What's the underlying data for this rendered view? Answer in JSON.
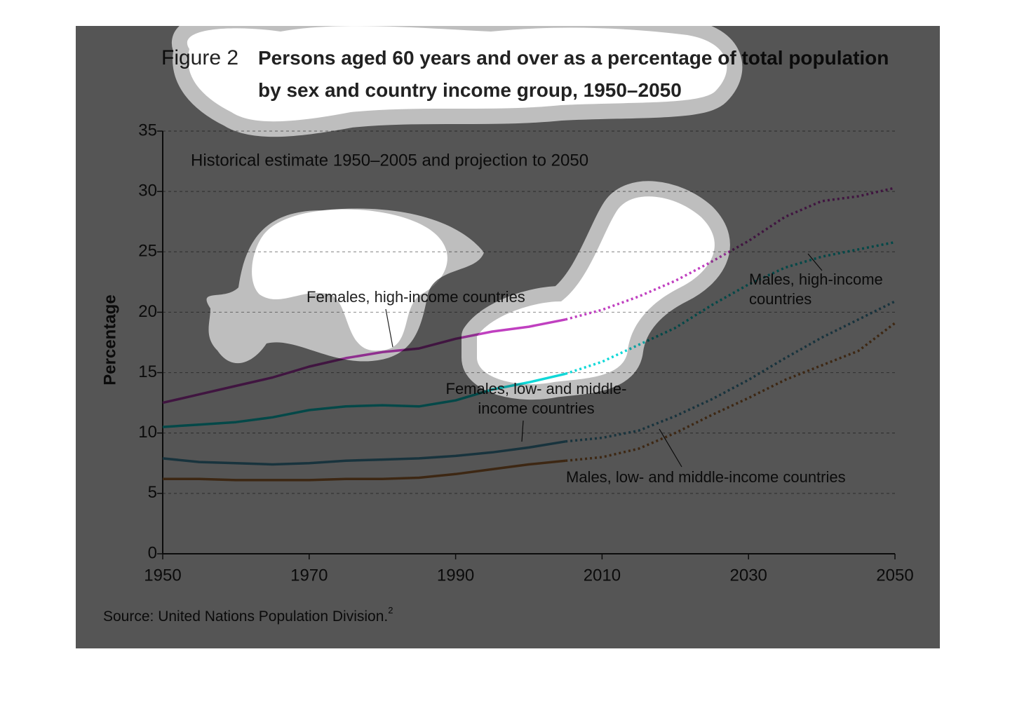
{
  "chart_data": {
    "type": "line",
    "figure_label": "Figure 2",
    "title": "Persons aged 60 years and over as a percentage of total population by sex and country income group, 1950–2050",
    "subtitle": "Historical estimate 1950–2005 and projection to 2050",
    "y_label": "Percentage",
    "source": "Source: United Nations Population Division.",
    "source_note": "2",
    "x": [
      1950,
      1955,
      1960,
      1965,
      1970,
      1975,
      1980,
      1985,
      1990,
      1995,
      2000,
      2005,
      2010,
      2015,
      2020,
      2025,
      2030,
      2035,
      2040,
      2045,
      2050
    ],
    "projection_from": 2005,
    "series": [
      {
        "name": "Females, high-income countries",
        "color": "#c040c0",
        "values": [
          12.5,
          13.2,
          13.9,
          14.6,
          15.5,
          16.2,
          16.7,
          17.0,
          17.8,
          18.4,
          18.8,
          19.4,
          20.2,
          21.3,
          22.6,
          24.2,
          25.9,
          27.9,
          29.2,
          29.6,
          30.3
        ]
      },
      {
        "name": "Males, high-income countries",
        "color": "#10d8d8",
        "values": [
          10.5,
          10.7,
          10.9,
          11.3,
          11.9,
          12.2,
          12.3,
          12.2,
          12.7,
          13.6,
          14.2,
          14.9,
          15.9,
          17.3,
          18.7,
          20.6,
          22.3,
          23.7,
          24.6,
          25.2,
          25.8
        ]
      },
      {
        "name": "Females, low- and middle-income countries",
        "color": "#4a9ab8",
        "values": [
          7.9,
          7.6,
          7.5,
          7.4,
          7.5,
          7.7,
          7.8,
          7.9,
          8.1,
          8.4,
          8.8,
          9.3,
          9.6,
          10.2,
          11.4,
          12.8,
          14.4,
          16.2,
          17.9,
          19.4,
          20.9
        ]
      },
      {
        "name": "Males, low- and middle-income countries",
        "color": "#b8783a",
        "values": [
          6.2,
          6.2,
          6.1,
          6.1,
          6.1,
          6.2,
          6.2,
          6.3,
          6.6,
          7.0,
          7.4,
          7.7,
          8.0,
          8.7,
          10.0,
          11.5,
          12.9,
          14.4,
          15.6,
          16.8,
          19.1
        ]
      }
    ],
    "xlim": [
      1950,
      2050
    ],
    "xticks": [
      1950,
      1970,
      1990,
      2010,
      2030,
      2050
    ],
    "ylim": [
      0,
      35
    ],
    "yticks": [
      0,
      5,
      10,
      15,
      20,
      25,
      30,
      35
    ],
    "grid": true
  }
}
